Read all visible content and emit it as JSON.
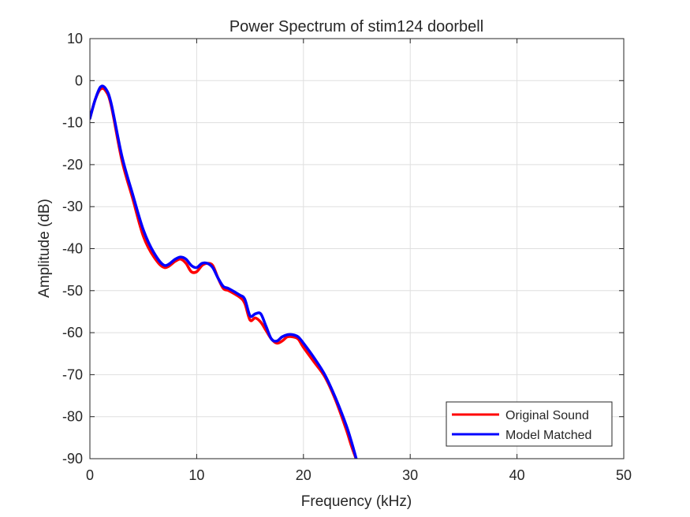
{
  "chart_data": {
    "type": "line",
    "title": "Power Spectrum of stim124 doorbell",
    "xlabel": "Frequency (kHz)",
    "ylabel": "Amplitude (dB)",
    "xlim": [
      0,
      50
    ],
    "ylim": [
      -90,
      10
    ],
    "xticks": [
      0,
      10,
      20,
      30,
      40,
      50
    ],
    "yticks": [
      10,
      0,
      -10,
      -20,
      -30,
      -40,
      -50,
      -60,
      -70,
      -80,
      -90
    ],
    "grid": true,
    "legend_position": "bottom-right",
    "series": [
      {
        "name": "Original Sound",
        "color": "#ff0000",
        "x": [
          0,
          0.5,
          1.0,
          1.5,
          2.0,
          3.0,
          4.0,
          5.0,
          6.0,
          7.0,
          8.0,
          8.5,
          9.0,
          9.5,
          10.0,
          10.5,
          11.0,
          11.5,
          12.0,
          12.5,
          13.0,
          14.0,
          14.5,
          15.0,
          15.5,
          16.0,
          16.5,
          17.0,
          17.5,
          18.0,
          18.5,
          19.0,
          19.5,
          20.0,
          21.0,
          22.0,
          23.0,
          24.0,
          24.5,
          25.0
        ],
        "y": [
          -9,
          -4.5,
          -2,
          -2.5,
          -6,
          -19,
          -28,
          -37,
          -42,
          -44.5,
          -43,
          -42.5,
          -43.5,
          -45.5,
          -45.5,
          -44,
          -43.5,
          -44,
          -47,
          -49.5,
          -50,
          -51.5,
          -53,
          -57,
          -56.5,
          -57.5,
          -59.5,
          -61.5,
          -62.5,
          -62,
          -61,
          -61,
          -61.5,
          -63.5,
          -67,
          -70.5,
          -76,
          -83,
          -87,
          -90.5
        ]
      },
      {
        "name": "Model Matched",
        "color": "#0000ff",
        "x": [
          0,
          0.5,
          1.0,
          1.5,
          2.0,
          3.0,
          4.0,
          5.0,
          6.0,
          7.0,
          8.0,
          8.5,
          9.0,
          9.5,
          10.0,
          10.5,
          11.0,
          11.5,
          12.0,
          12.5,
          13.0,
          14.0,
          14.5,
          15.0,
          15.5,
          16.0,
          16.5,
          17.0,
          17.5,
          18.0,
          18.5,
          19.0,
          19.5,
          20.0,
          21.0,
          22.0,
          23.0,
          24.0,
          24.5,
          25.0
        ],
        "y": [
          -9,
          -4.5,
          -1.5,
          -2,
          -5.5,
          -18,
          -27,
          -35.5,
          -41,
          -44,
          -42.5,
          -42,
          -42.5,
          -44,
          -44.5,
          -43.5,
          -43.5,
          -44.5,
          -47,
          -49,
          -49.5,
          -51,
          -52,
          -56,
          -55.5,
          -55.5,
          -58.5,
          -61.5,
          -62,
          -61,
          -60.5,
          -60.5,
          -61,
          -62.5,
          -66,
          -70,
          -75.5,
          -82,
          -86,
          -90.5
        ]
      }
    ]
  }
}
